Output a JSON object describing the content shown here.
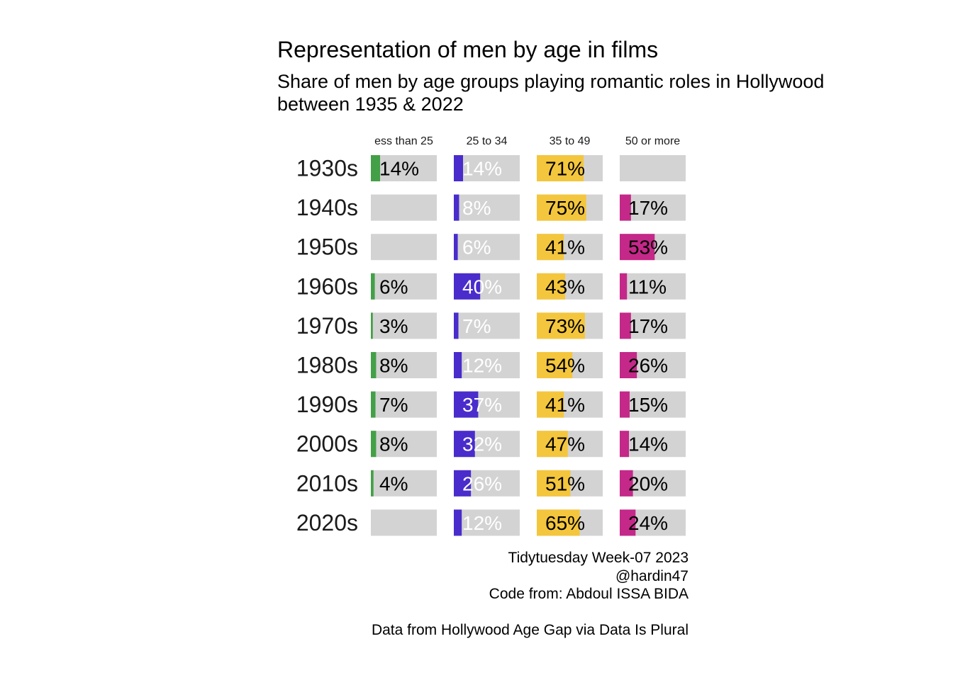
{
  "title": "Representation of men by age in films",
  "subtitle": "Share of men by age groups playing romantic roles in Hollywood between 1935 & 2022",
  "caption": {
    "line1": "Tidytuesday Week-07 2023",
    "line2": "@hardin47",
    "line3": "Code from: Abdoul ISSA BIDA",
    "line4": "Data from Hollywood Age Gap via Data Is Plural"
  },
  "chart_data": {
    "type": "bar",
    "title": "Representation of men by age in films",
    "subtitle": "Share of men by age groups playing romantic roles in Hollywood between 1935 & 2022",
    "categories": [
      "1930s",
      "1940s",
      "1950s",
      "1960s",
      "1970s",
      "1980s",
      "1990s",
      "2000s",
      "2010s",
      "2020s"
    ],
    "series": [
      {
        "name": "ess than 25",
        "color": "#43a047",
        "label_color": "#000000",
        "values": [
          14,
          null,
          null,
          6,
          3,
          8,
          7,
          8,
          4,
          null
        ]
      },
      {
        "name": "25 to 34",
        "color": "#4a2ccc",
        "label_color": "#ffffff",
        "values": [
          14,
          8,
          6,
          40,
          7,
          12,
          37,
          32,
          26,
          12
        ]
      },
      {
        "name": "35 to 49",
        "color": "#f4c63d",
        "label_color": "#000000",
        "values": [
          71,
          75,
          41,
          43,
          73,
          54,
          41,
          47,
          51,
          65
        ]
      },
      {
        "name": "50 or more",
        "color": "#c42889",
        "label_color": "#000000",
        "values": [
          null,
          17,
          53,
          11,
          17,
          26,
          15,
          14,
          20,
          24
        ]
      }
    ],
    "label_suffix": "%",
    "background_color": "#d3d3d3",
    "grid": false,
    "legend": "none"
  }
}
